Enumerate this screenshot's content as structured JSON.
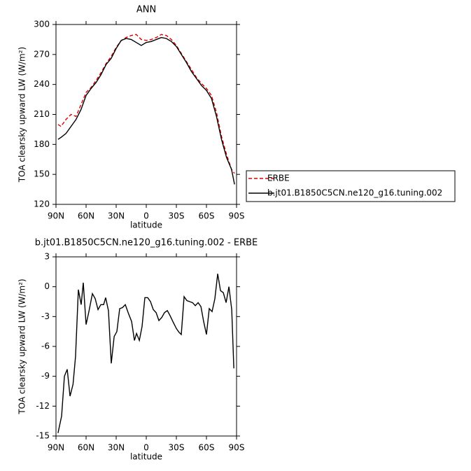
{
  "chart_data": [
    {
      "type": "line",
      "title": "ANN",
      "xlabel": "latitude",
      "ylabel": "TOA clearsky upward LW (W/m²)",
      "x": [
        88,
        85,
        80,
        75,
        70,
        65,
        60,
        55,
        50,
        45,
        40,
        35,
        30,
        25,
        20,
        15,
        10,
        5,
        0,
        -5,
        -10,
        -15,
        -20,
        -25,
        -30,
        -35,
        -40,
        -45,
        -50,
        -55,
        -60,
        -65,
        -70,
        -75,
        -80,
        -85,
        -88
      ],
      "series": [
        {
          "name": "ERBE",
          "color": "#e00000",
          "linestyle": "dashed",
          "values": [
            200,
            198,
            205,
            210,
            208,
            220,
            232,
            237,
            244,
            252,
            261,
            268,
            277,
            284,
            287,
            289,
            290,
            285,
            284,
            285,
            287,
            290,
            289,
            285,
            279,
            271,
            263,
            255,
            247,
            241,
            236,
            229,
            212,
            188,
            170,
            155,
            151
          ]
        },
        {
          "name": "b.jt01.B1850C5CN.ne120_g16.tuning.002",
          "color": "#000000",
          "linestyle": "solid",
          "values": [
            185,
            187,
            191,
            198,
            205,
            215,
            229,
            236,
            242,
            250,
            260,
            266,
            276,
            284,
            286,
            285,
            282,
            279,
            282,
            283,
            285,
            287,
            286,
            283,
            278,
            270,
            262,
            253,
            246,
            239,
            234,
            226,
            208,
            185,
            167,
            155,
            140
          ]
        }
      ],
      "xlim": [
        90,
        -90
      ],
      "xticks": [
        {
          "value": 90,
          "label": "90N"
        },
        {
          "value": 60,
          "label": "60N"
        },
        {
          "value": 30,
          "label": "30N"
        },
        0,
        {
          "value": -30,
          "label": "30S"
        },
        {
          "value": -60,
          "label": "60S"
        },
        {
          "value": -90,
          "label": "90S"
        }
      ],
      "ylim": [
        120,
        300
      ],
      "yticks": [
        120,
        150,
        180,
        210,
        240,
        270,
        300
      ],
      "legend": "right"
    },
    {
      "type": "line",
      "title": "b.jt01.B1850C5CN.ne120_g16.tuning.002 - ERBE",
      "xlabel": "latitude",
      "ylabel": "TOA clearsky upward LW (W/m²)",
      "x": [
        88,
        84.4,
        81.6,
        78.8,
        76,
        73,
        70.5,
        67.7,
        64.9,
        62.8,
        60,
        57.2,
        53.7,
        50.9,
        48.1,
        45.3,
        42.5,
        40.5,
        37.7,
        34.9,
        32,
        29.3,
        26.5,
        23.7,
        20.9,
        18.1,
        14.6,
        11.8,
        9.7,
        6.9,
        4.2,
        1.4,
        -1.4,
        -4.2,
        -7,
        -9.8,
        -12.6,
        -15.4,
        -18.2,
        -21,
        -23.7,
        -26.5,
        -30,
        -32.8,
        -34.9,
        -37.7,
        -40.5,
        -43.3,
        -46.1,
        -48.9,
        -51.7,
        -54.5,
        -57.2,
        -60,
        -62.8,
        -65.6,
        -68.4,
        -71.2,
        -74,
        -76.8,
        -79.6,
        -82.4,
        -85.2,
        -87.3
      ],
      "series": [
        {
          "color": "#000000",
          "linestyle": "solid",
          "values": [
            -14.7,
            -13,
            -9,
            -8.3,
            -11,
            -9.8,
            -7,
            -0.3,
            -1.8,
            0.4,
            -3.8,
            -2.5,
            -0.7,
            -1.2,
            -2.3,
            -1.8,
            -1.8,
            -1.1,
            -2.4,
            -7.7,
            -5,
            -4.5,
            -2.2,
            -2.1,
            -1.8,
            -2.6,
            -3.5,
            -5.4,
            -4.7,
            -5.4,
            -4,
            -1.1,
            -1.1,
            -1.5,
            -2.3,
            -2.6,
            -3.4,
            -3.1,
            -2.6,
            -2.4,
            -2.9,
            -3.5,
            -4.2,
            -4.6,
            -4.8,
            -1,
            -1.4,
            -1.5,
            -1.6,
            -1.9,
            -1.6,
            -2,
            -3.5,
            -4.8,
            -2.2,
            -2.5,
            -1.2,
            1.3,
            -0.4,
            -0.6,
            -1.6,
            0,
            -2.3,
            -8.2
          ]
        }
      ],
      "xlim": [
        90,
        -90
      ],
      "xticks": [
        {
          "value": 90,
          "label": "90N"
        },
        {
          "value": 60,
          "label": "60N"
        },
        {
          "value": 30,
          "label": "30N"
        },
        0,
        {
          "value": -30,
          "label": "30S"
        },
        {
          "value": -60,
          "label": "60S"
        },
        {
          "value": -90,
          "label": "90S"
        }
      ],
      "ylim": [
        -15,
        3
      ],
      "yticks": [
        -15,
        -12,
        -9,
        -6,
        -3,
        0,
        3
      ]
    }
  ]
}
